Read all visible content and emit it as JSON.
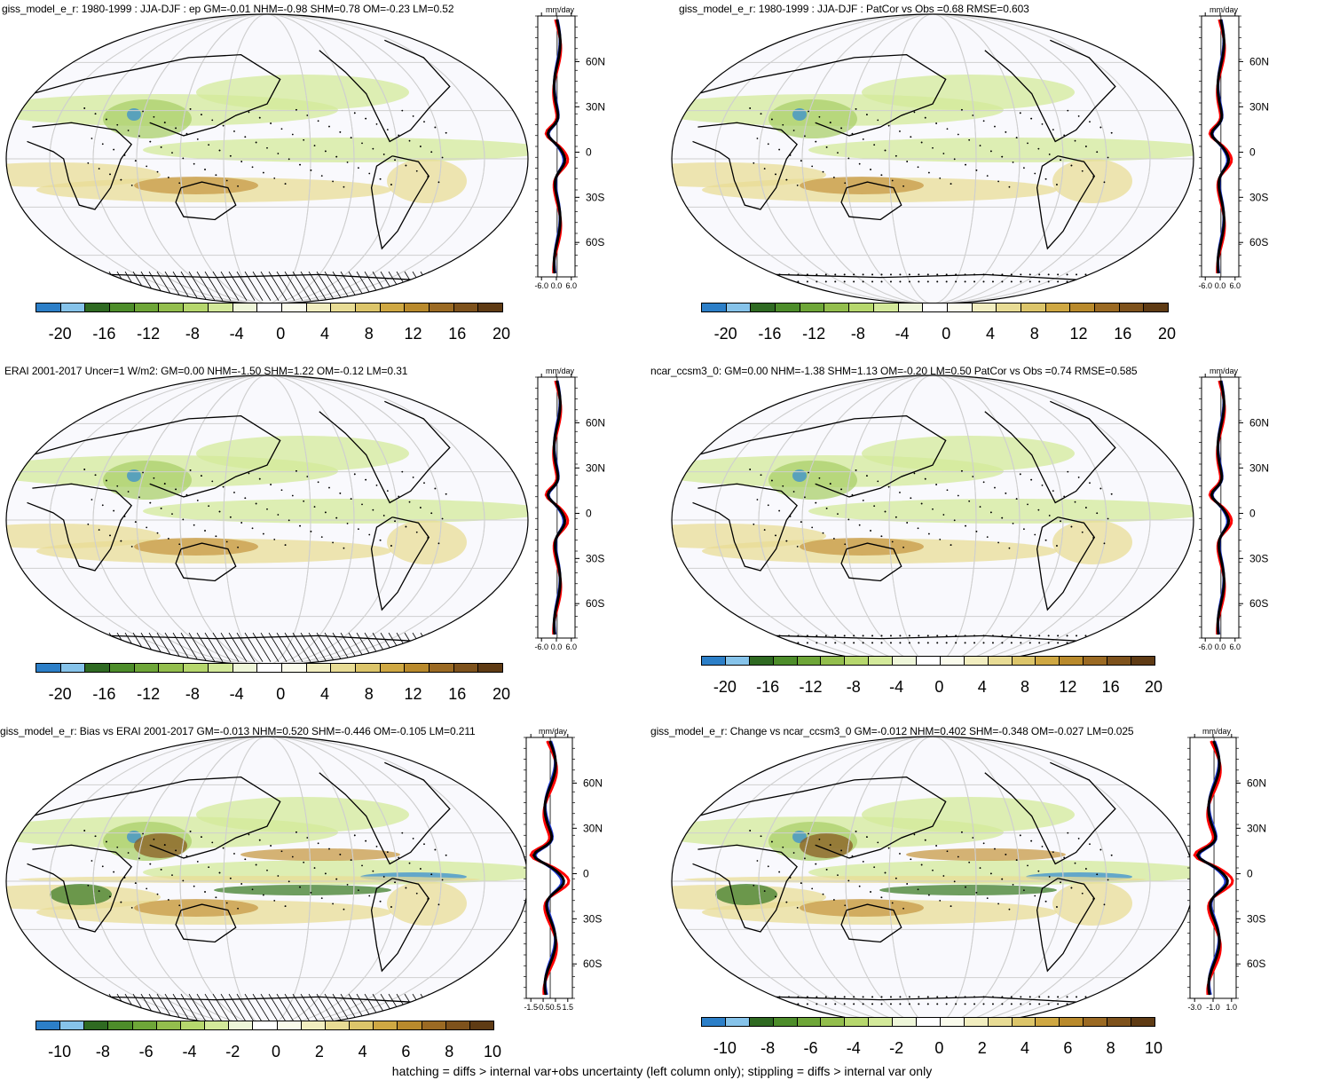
{
  "panels": [
    {
      "title": "giss_model_e_r: 1980-1999 : JJA-DJF : ep GM=-0.01 NHM=-0.98 SHM=0.78 OM=-0.23 LM=0.52",
      "colorbar_labels": [
        "-20",
        "-16",
        "-12",
        "-8",
        "-4",
        "0",
        "4",
        "8",
        "12",
        "16",
        "20"
      ],
      "profile_ticks": [
        "-6.0",
        "0.0",
        "6.0"
      ],
      "profile_unit": "mm/day",
      "lat_labels": [
        "60N",
        "30N",
        "0",
        "30S",
        "60S"
      ],
      "hatching": true
    },
    {
      "title": "giss_model_e_r: 1980-1999 : JJA-DJF : PatCor vs Obs =0.68 RMSE=0.603",
      "colorbar_labels": [
        "-20",
        "-16",
        "-12",
        "-8",
        "-4",
        "0",
        "4",
        "8",
        "12",
        "16",
        "20"
      ],
      "profile_ticks": [
        "-6.0",
        "0.0",
        "6.0"
      ],
      "profile_unit": "mm/day",
      "lat_labels": [
        "60N",
        "30N",
        "0",
        "30S",
        "60S"
      ],
      "hatching": false
    },
    {
      "title": "ERAI 2001-2017 Uncer=1 W/m2: GM=0.00 NHM=-1.50 SHM=1.22 OM=-0.12 LM=0.31",
      "colorbar_labels": [
        "-20",
        "-16",
        "-12",
        "-8",
        "-4",
        "0",
        "4",
        "8",
        "12",
        "16",
        "20"
      ],
      "profile_ticks": [
        "-6.0",
        "0.0",
        "6.0"
      ],
      "profile_unit": "mm/day",
      "lat_labels": [
        "60N",
        "30N",
        "0",
        "30S",
        "60S"
      ],
      "hatching": true
    },
    {
      "title": "ncar_ccsm3_0: GM=0.00 NHM=-1.38 SHM=1.13 OM=-0.20 LM=0.50 PatCor vs Obs =0.74 RMSE=0.585",
      "colorbar_labels": [
        "-20",
        "-16",
        "-12",
        "-8",
        "-4",
        "0",
        "4",
        "8",
        "12",
        "16",
        "20"
      ],
      "profile_ticks": [
        "-6.0",
        "0.0",
        "6.0"
      ],
      "profile_unit": "mm/day",
      "lat_labels": [
        "60N",
        "30N",
        "0",
        "30S",
        "60S"
      ],
      "hatching": false
    },
    {
      "title": "giss_model_e_r: Bias vs ERAI 2001-2017 GM=-0.013 NHM=0.520 SHM=-0.446 OM=-0.105 LM=0.211",
      "colorbar_labels": [
        "-10",
        "-8",
        "-6",
        "-4",
        "-2",
        "0",
        "2",
        "4",
        "6",
        "8",
        "10"
      ],
      "profile_ticks": [
        "-1.5",
        "-0.5",
        "0.5",
        "1.5"
      ],
      "profile_unit": "mm/day",
      "lat_labels": [
        "60N",
        "30N",
        "0",
        "30S",
        "60S"
      ],
      "hatching": true
    },
    {
      "title": "giss_model_e_r: Change vs ncar_ccsm3_0 GM=-0.012 NHM=0.402 SHM=-0.348 OM=-0.027 LM=0.025",
      "colorbar_labels": [
        "-10",
        "-8",
        "-6",
        "-4",
        "-2",
        "0",
        "2",
        "4",
        "6",
        "8",
        "10"
      ],
      "profile_ticks": [
        "-3.0",
        "-1.0",
        "1.0"
      ],
      "profile_unit": "mm/day",
      "lat_labels": [
        "60N",
        "30N",
        "0",
        "30S",
        "60S"
      ],
      "hatching": false
    }
  ],
  "colorbar_colors": [
    "#2c7fc8",
    "#86c3ea",
    "#2f6a22",
    "#4d8d2a",
    "#6ea638",
    "#93be4d",
    "#b6d76d",
    "#d3e99a",
    "#eef6d9",
    "#ffffff",
    "#fafbec",
    "#f2eec0",
    "#e8dc95",
    "#dcc56a",
    "#cfa843",
    "#b98a2c",
    "#9b6a23",
    "#7e521c",
    "#5f3b14"
  ],
  "footer": "hatching = diffs > internal var+obs uncertainty (left column only); stippling = diffs > internal var only"
}
